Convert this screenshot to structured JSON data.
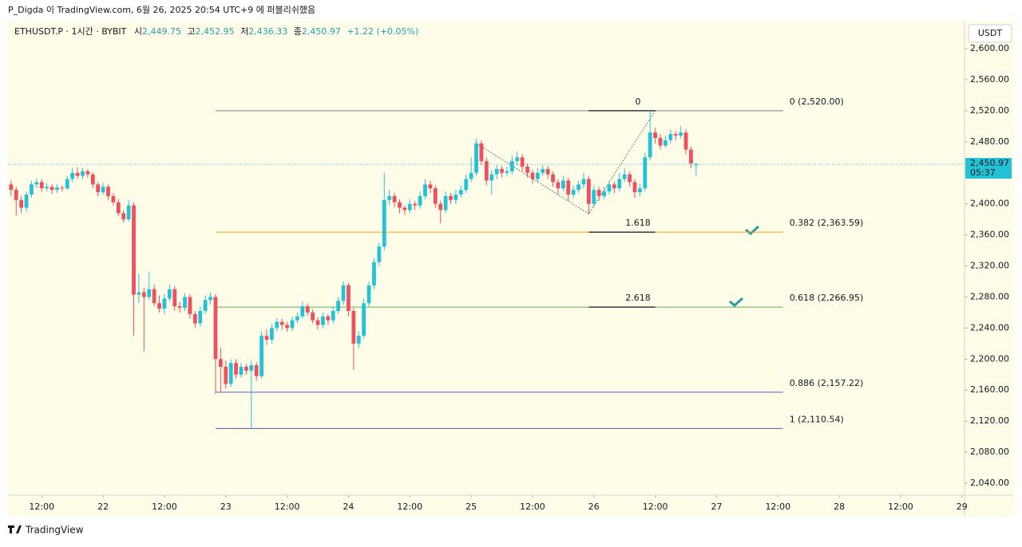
{
  "page": {
    "caption": "P_Digda 이 TradingView.com, 6월 26, 2025 20:54 UTC+9 에 퍼블리쉬했음",
    "brand": "TradingView"
  },
  "chart_data": {
    "type": "candlestick",
    "legend": {
      "symbol": "ETHUSDT.P · 1시간 · BYBIT",
      "open_label": "시",
      "open": "2,449.75",
      "high_label": "고",
      "high": "2,452.95",
      "low_label": "저",
      "low": "2,436.33",
      "close_label": "종",
      "close": "2,450.97",
      "change": "+1.22 (+0.05%)"
    },
    "currency": "USDT",
    "up_color": "#22c3d6",
    "down_color": "#ef4f5e",
    "x": [
      6,
      7,
      8,
      9,
      10,
      11,
      12,
      13,
      14,
      15,
      16,
      17,
      18,
      19,
      20,
      21,
      22,
      23,
      24,
      25,
      26,
      27,
      28,
      29,
      30,
      31,
      32,
      33,
      34,
      35,
      36,
      37,
      38,
      39,
      40,
      41,
      42,
      43,
      44,
      45,
      46,
      47,
      48,
      49,
      50,
      51,
      52,
      53,
      54,
      55,
      56,
      57,
      58,
      59,
      60,
      61,
      62,
      63,
      64,
      65,
      66,
      67,
      68,
      69,
      70,
      71,
      72,
      73,
      74,
      75,
      76,
      77,
      78,
      79,
      80,
      81,
      82,
      83,
      84,
      85,
      86,
      87,
      88,
      89,
      90,
      91,
      92,
      93,
      94,
      95,
      96,
      97,
      98,
      99,
      100,
      101,
      102,
      103,
      104,
      105,
      106,
      107,
      108,
      109,
      110,
      111,
      112,
      113,
      114,
      115,
      116,
      117,
      118,
      119,
      120,
      121,
      122,
      123,
      124,
      125,
      126,
      127,
      128,
      129,
      130,
      131,
      132,
      133,
      134,
      135,
      136,
      137,
      138,
      139,
      140
    ],
    "candles": [
      [
        2425,
        2430,
        2410,
        2418
      ],
      [
        2418,
        2422,
        2385,
        2405
      ],
      [
        2405,
        2410,
        2388,
        2395
      ],
      [
        2395,
        2416,
        2390,
        2412
      ],
      [
        2412,
        2430,
        2408,
        2425
      ],
      [
        2425,
        2433,
        2420,
        2428
      ],
      [
        2428,
        2432,
        2415,
        2420
      ],
      [
        2420,
        2427,
        2416,
        2422
      ],
      [
        2422,
        2425,
        2413,
        2418
      ],
      [
        2418,
        2425,
        2414,
        2421
      ],
      [
        2421,
        2424,
        2416,
        2420
      ],
      [
        2420,
        2436,
        2418,
        2432
      ],
      [
        2432,
        2446,
        2428,
        2440
      ],
      [
        2440,
        2447,
        2432,
        2436
      ],
      [
        2436,
        2446,
        2432,
        2442
      ],
      [
        2442,
        2445,
        2434,
        2438
      ],
      [
        2438,
        2441,
        2420,
        2425
      ],
      [
        2425,
        2428,
        2410,
        2415
      ],
      [
        2415,
        2427,
        2412,
        2422
      ],
      [
        2422,
        2425,
        2405,
        2410
      ],
      [
        2410,
        2414,
        2398,
        2402
      ],
      [
        2402,
        2406,
        2384,
        2388
      ],
      [
        2388,
        2392,
        2376,
        2380
      ],
      [
        2380,
        2405,
        2377,
        2398
      ],
      [
        2398,
        2402,
        2230,
        2283
      ],
      [
        2283,
        2310,
        2272,
        2286
      ],
      [
        2286,
        2292,
        2210,
        2280
      ],
      [
        2280,
        2312,
        2276,
        2290
      ],
      [
        2290,
        2296,
        2268,
        2272
      ],
      [
        2272,
        2282,
        2260,
        2265
      ],
      [
        2265,
        2284,
        2258,
        2278
      ],
      [
        2278,
        2296,
        2274,
        2290
      ],
      [
        2290,
        2294,
        2262,
        2268
      ],
      [
        2268,
        2274,
        2260,
        2266
      ],
      [
        2266,
        2285,
        2262,
        2280
      ],
      [
        2280,
        2284,
        2252,
        2258
      ],
      [
        2258,
        2262,
        2240,
        2246
      ],
      [
        2246,
        2268,
        2242,
        2262
      ],
      [
        2262,
        2282,
        2258,
        2276
      ],
      [
        2276,
        2286,
        2270,
        2280
      ],
      [
        2280,
        2284,
        2155,
        2200
      ],
      [
        2200,
        2215,
        2158,
        2190
      ],
      [
        2190,
        2198,
        2162,
        2168
      ],
      [
        2168,
        2200,
        2164,
        2195
      ],
      [
        2195,
        2200,
        2175,
        2180
      ],
      [
        2180,
        2195,
        2176,
        2190
      ],
      [
        2190,
        2194,
        2180,
        2185
      ],
      [
        2185,
        2198,
        2110.54,
        2192
      ],
      [
        2192,
        2196,
        2172,
        2178
      ],
      [
        2178,
        2236,
        2175,
        2230
      ],
      [
        2230,
        2238,
        2218,
        2225
      ],
      [
        2225,
        2245,
        2220,
        2240
      ],
      [
        2240,
        2253,
        2236,
        2248
      ],
      [
        2248,
        2252,
        2238,
        2244
      ],
      [
        2244,
        2248,
        2235,
        2240
      ],
      [
        2240,
        2255,
        2236,
        2250
      ],
      [
        2250,
        2260,
        2246,
        2255
      ],
      [
        2255,
        2274,
        2252,
        2268
      ],
      [
        2268,
        2272,
        2256,
        2260
      ],
      [
        2260,
        2264,
        2246,
        2250
      ],
      [
        2250,
        2254,
        2238,
        2244
      ],
      [
        2244,
        2260,
        2240,
        2255
      ],
      [
        2255,
        2258,
        2244,
        2250
      ],
      [
        2250,
        2268,
        2246,
        2262
      ],
      [
        2262,
        2280,
        2258,
        2275
      ],
      [
        2275,
        2300,
        2270,
        2295
      ],
      [
        2295,
        2298,
        2255,
        2262
      ],
      [
        2262,
        2266,
        2186,
        2220
      ],
      [
        2220,
        2236,
        2214,
        2230
      ],
      [
        2230,
        2278,
        2226,
        2272
      ],
      [
        2272,
        2300,
        2268,
        2295
      ],
      [
        2295,
        2330,
        2290,
        2325
      ],
      [
        2325,
        2350,
        2320,
        2345
      ],
      [
        2345,
        2440,
        2340,
        2405
      ],
      [
        2405,
        2418,
        2398,
        2410
      ],
      [
        2410,
        2414,
        2396,
        2402
      ],
      [
        2402,
        2406,
        2388,
        2395
      ],
      [
        2395,
        2398,
        2386,
        2392
      ],
      [
        2392,
        2406,
        2388,
        2400
      ],
      [
        2400,
        2404,
        2392,
        2398
      ],
      [
        2398,
        2416,
        2394,
        2410
      ],
      [
        2410,
        2432,
        2406,
        2425
      ],
      [
        2425,
        2430,
        2414,
        2420
      ],
      [
        2420,
        2424,
        2395,
        2400
      ],
      [
        2400,
        2404,
        2375,
        2392
      ],
      [
        2392,
        2416,
        2388,
        2410
      ],
      [
        2410,
        2414,
        2400,
        2405
      ],
      [
        2405,
        2418,
        2400,
        2412
      ],
      [
        2412,
        2424,
        2408,
        2418
      ],
      [
        2418,
        2438,
        2414,
        2432
      ],
      [
        2432,
        2460,
        2428,
        2440
      ],
      [
        2440,
        2484,
        2436,
        2478
      ],
      [
        2478,
        2482,
        2450,
        2455
      ],
      [
        2455,
        2460,
        2424,
        2430
      ],
      [
        2430,
        2444,
        2412,
        2438
      ],
      [
        2438,
        2450,
        2432,
        2445
      ],
      [
        2445,
        2449,
        2434,
        2440
      ],
      [
        2440,
        2448,
        2436,
        2442
      ],
      [
        2442,
        2462,
        2438,
        2455
      ],
      [
        2455,
        2468,
        2450,
        2460
      ],
      [
        2460,
        2464,
        2442,
        2448
      ],
      [
        2448,
        2452,
        2434,
        2440
      ],
      [
        2440,
        2444,
        2426,
        2432
      ],
      [
        2432,
        2446,
        2428,
        2440
      ],
      [
        2440,
        2450,
        2436,
        2445
      ],
      [
        2445,
        2449,
        2432,
        2438
      ],
      [
        2438,
        2442,
        2422,
        2428
      ],
      [
        2428,
        2432,
        2412,
        2420
      ],
      [
        2420,
        2436,
        2416,
        2430
      ],
      [
        2430,
        2434,
        2404,
        2412
      ],
      [
        2412,
        2424,
        2408,
        2418
      ],
      [
        2418,
        2430,
        2414,
        2425
      ],
      [
        2425,
        2440,
        2420,
        2432
      ],
      [
        2432,
        2436,
        2387,
        2400
      ],
      [
        2400,
        2424,
        2396,
        2418
      ],
      [
        2418,
        2422,
        2404,
        2410
      ],
      [
        2410,
        2422,
        2406,
        2416
      ],
      [
        2416,
        2430,
        2412,
        2425
      ],
      [
        2425,
        2429,
        2414,
        2420
      ],
      [
        2420,
        2440,
        2416,
        2432
      ],
      [
        2432,
        2446,
        2428,
        2438
      ],
      [
        2438,
        2442,
        2422,
        2428
      ],
      [
        2428,
        2432,
        2408,
        2415
      ],
      [
        2415,
        2426,
        2410,
        2420
      ],
      [
        2420,
        2466,
        2416,
        2460
      ],
      [
        2460,
        2520,
        2456,
        2492
      ],
      [
        2492,
        2498,
        2478,
        2485
      ],
      [
        2485,
        2490,
        2470,
        2475
      ],
      [
        2475,
        2488,
        2472,
        2482
      ],
      [
        2482,
        2496,
        2478,
        2490
      ],
      [
        2490,
        2494,
        2482,
        2488
      ],
      [
        2488,
        2500,
        2484,
        2492
      ],
      [
        2492,
        2496,
        2464,
        2470
      ],
      [
        2470,
        2474,
        2446,
        2452
      ],
      [
        2449.75,
        2452.95,
        2436.33,
        2450.97
      ]
    ],
    "xlim": [
      5.4,
      192.5
    ],
    "xticks": [
      {
        "value": 12,
        "label": "12:00"
      },
      {
        "value": 24,
        "label": "22"
      },
      {
        "value": 36,
        "label": "12:00"
      },
      {
        "value": 48,
        "label": "23"
      },
      {
        "value": 60,
        "label": "12:00"
      },
      {
        "value": 72,
        "label": "24"
      },
      {
        "value": 84,
        "label": "12:00"
      },
      {
        "value": 96,
        "label": "25"
      },
      {
        "value": 108,
        "label": "12:00"
      },
      {
        "value": 120,
        "label": "26"
      },
      {
        "value": 132,
        "label": "12:00"
      },
      {
        "value": 144,
        "label": "27"
      },
      {
        "value": 156,
        "label": "12:00"
      },
      {
        "value": 168,
        "label": "28"
      },
      {
        "value": 180,
        "label": "12:00"
      },
      {
        "value": 192,
        "label": "29"
      }
    ],
    "ylim": [
      2024.6,
      2636
    ],
    "yticks": [
      {
        "value": 2040,
        "label": "2,040.00"
      },
      {
        "value": 2080,
        "label": "2,080.00"
      },
      {
        "value": 2120,
        "label": "2,120.00"
      },
      {
        "value": 2160,
        "label": "2,160.00"
      },
      {
        "value": 2200,
        "label": "2,200.00"
      },
      {
        "value": 2240,
        "label": "2,240.00"
      },
      {
        "value": 2280,
        "label": "2,280.00"
      },
      {
        "value": 2320,
        "label": "2,320.00"
      },
      {
        "value": 2360,
        "label": "2,360.00"
      },
      {
        "value": 2400,
        "label": "2,400.00"
      },
      {
        "value": 2440,
        "label": "2,440.00"
      },
      {
        "value": 2480,
        "label": "2,480.00"
      },
      {
        "value": 2520,
        "label": "2,520.00"
      },
      {
        "value": 2560,
        "label": "2,560.00"
      },
      {
        "value": 2600,
        "label": "2,600.00"
      }
    ],
    "last_price": {
      "value": 2450.97,
      "label": "2,450.97"
    },
    "countdown": "05:37",
    "fib": {
      "x": [
        46,
        157
      ],
      "levels": [
        {
          "value": 2520,
          "label": "0 (2,520.00)",
          "color": "#787b86",
          "text_color": "#787b86"
        },
        {
          "value": 2363.59,
          "label": "0.382 (2,363.59)",
          "color": "#e8a317",
          "text_color": "#e8a317"
        },
        {
          "value": 2266.95,
          "label": "0.618 (2,266.95)",
          "color": "#5cae5c",
          "text_color": "#4c9a4c"
        },
        {
          "value": 2157.22,
          "label": "0.886 (2,157.22)",
          "color": "#5656c8",
          "text_color": "#5656a8"
        },
        {
          "value": 2110.54,
          "label": "1 (2,110.54)",
          "color": "#5656a8",
          "text_color": "#787b86"
        }
      ]
    },
    "extensions": [
      {
        "value": 2520,
        "label": "0",
        "x": [
          119,
          132
        ]
      },
      {
        "value": 2363.59,
        "label": "1.618",
        "x": [
          119,
          132
        ]
      },
      {
        "value": 2266.95,
        "label": "2.618",
        "x": [
          119,
          132
        ]
      }
    ],
    "pattern": {
      "x": [
        97,
        119,
        132
      ],
      "y": [
        2478,
        2387,
        2520
      ]
    }
  }
}
